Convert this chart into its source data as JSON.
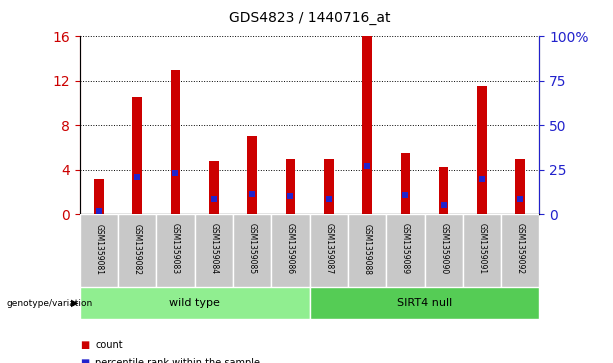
{
  "title": "GDS4823 / 1440716_at",
  "samples": [
    "GSM1359081",
    "GSM1359082",
    "GSM1359083",
    "GSM1359084",
    "GSM1359085",
    "GSM1359086",
    "GSM1359087",
    "GSM1359088",
    "GSM1359089",
    "GSM1359090",
    "GSM1359091",
    "GSM1359092"
  ],
  "counts": [
    3.2,
    10.5,
    13.0,
    4.8,
    7.0,
    5.0,
    5.0,
    16.0,
    5.5,
    4.2,
    11.5,
    5.0
  ],
  "percentiles_left_scale": [
    0.25,
    3.3,
    3.7,
    1.4,
    1.8,
    1.6,
    1.4,
    4.3,
    1.7,
    0.8,
    3.2,
    1.4
  ],
  "bar_color": "#cc0000",
  "dot_color": "#2222cc",
  "left_ylim": [
    0,
    16
  ],
  "right_ylim": [
    0,
    100
  ],
  "left_yticks": [
    0,
    4,
    8,
    12,
    16
  ],
  "right_yticks": [
    0,
    25,
    50,
    75,
    100
  ],
  "right_yticklabels": [
    "0",
    "25",
    "50",
    "75",
    "100%"
  ],
  "groups": [
    {
      "label": "wild type",
      "start": 0,
      "end": 6,
      "color": "#90ee90"
    },
    {
      "label": "SIRT4 null",
      "start": 6,
      "end": 12,
      "color": "#55cc55"
    }
  ],
  "group_label_prefix": "genotype/variation",
  "legend_items": [
    {
      "label": "count",
      "color": "#cc0000"
    },
    {
      "label": "percentile rank within the sample",
      "color": "#2222cc"
    }
  ],
  "tick_label_color_left": "#cc0000",
  "tick_label_color_right": "#2222cc",
  "bar_width": 0.25,
  "sample_bg_color": "#c8c8c8"
}
